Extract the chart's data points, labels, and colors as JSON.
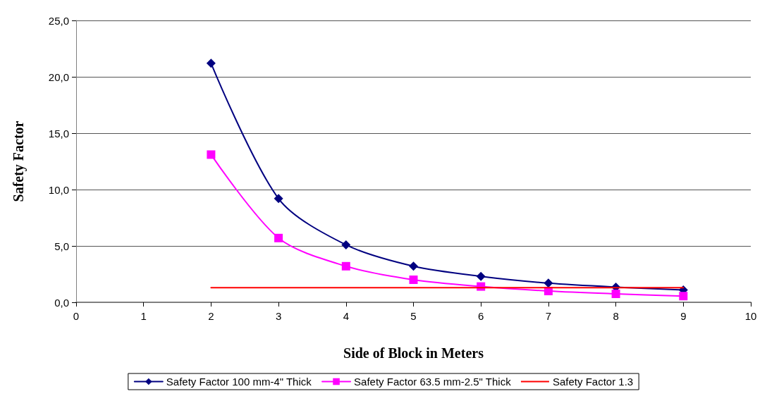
{
  "chart_data": {
    "type": "line",
    "xlabel": "Side of Block in Meters",
    "ylabel": "Safety Factor",
    "x": [
      2,
      3,
      4,
      5,
      6,
      7,
      8,
      9
    ],
    "series": [
      {
        "name": "Safety Factor 100 mm-4\" Thick",
        "color": "#000080",
        "marker": "diamond",
        "values": [
          21.2,
          9.2,
          5.1,
          3.2,
          2.3,
          1.7,
          1.35,
          1.1
        ]
      },
      {
        "name": "Safety Factor 63.5 mm-2.5\" Thick",
        "color": "#ff00ff",
        "marker": "square",
        "values": [
          13.1,
          5.7,
          3.2,
          2.0,
          1.4,
          1.0,
          0.75,
          0.55
        ]
      },
      {
        "name": "Safety Factor 1.3",
        "color": "#ff0000",
        "marker": "none",
        "values": [
          1.3,
          1.3,
          1.3,
          1.3,
          1.3,
          1.3,
          1.3,
          1.3
        ]
      }
    ],
    "xlim": [
      0,
      10
    ],
    "xticks": [
      0,
      1,
      2,
      3,
      4,
      5,
      6,
      7,
      8,
      9,
      10
    ],
    "ylim": [
      0,
      25
    ],
    "yticks": [
      {
        "value": 0,
        "label": "0,0"
      },
      {
        "value": 5,
        "label": "5,0"
      },
      {
        "value": 10,
        "label": "10,0"
      },
      {
        "value": 15,
        "label": "15,0"
      },
      {
        "value": 20,
        "label": "20,0"
      },
      {
        "value": 25,
        "label": "25,0"
      }
    ],
    "grid": "y",
    "legend": "bottom",
    "line_style": "solid"
  }
}
